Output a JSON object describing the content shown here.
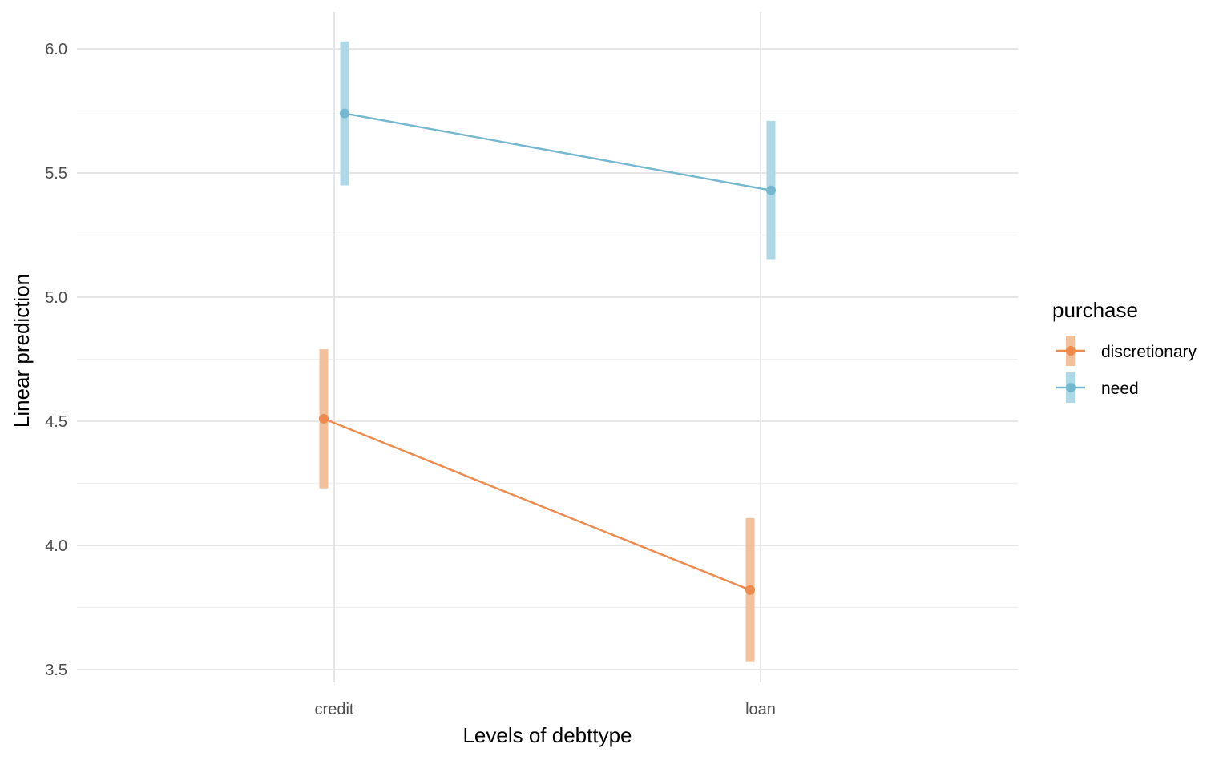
{
  "chart_data": {
    "type": "line",
    "title": "",
    "xlabel": "Levels of debttype",
    "ylabel": "Linear prediction",
    "categories": [
      "credit",
      "loan"
    ],
    "ylim": [
      3.42,
      6.15
    ],
    "yticks": [
      "3.5",
      "4.0",
      "4.5",
      "5.0",
      "5.5",
      "6.0"
    ],
    "grid": true,
    "legend": {
      "title": "purchase",
      "position": "right"
    },
    "series": [
      {
        "name": "discretionary",
        "color": "#EE8A4B",
        "ci_color": "#F4BF9B",
        "values": [
          4.51,
          3.82
        ],
        "lower": [
          4.23,
          3.53
        ],
        "upper": [
          4.79,
          4.11
        ]
      },
      {
        "name": "need",
        "color": "#74B8D0",
        "ci_color": "#AED8E6",
        "values": [
          5.74,
          5.43
        ],
        "lower": [
          5.45,
          5.15
        ],
        "upper": [
          6.03,
          5.71
        ]
      }
    ]
  }
}
